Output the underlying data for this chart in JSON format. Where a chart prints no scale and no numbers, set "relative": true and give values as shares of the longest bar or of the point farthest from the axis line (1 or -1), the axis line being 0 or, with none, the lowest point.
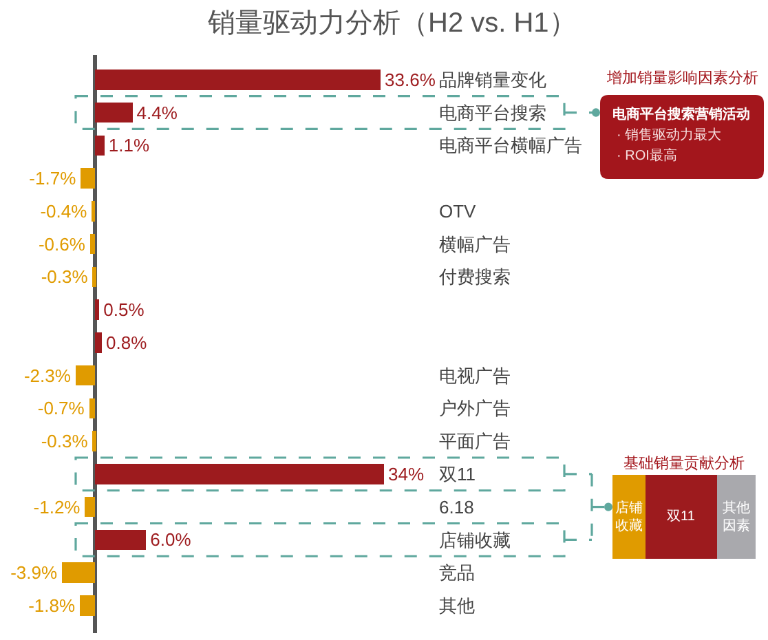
{
  "chart_data": [
    {
      "type": "bar",
      "title": "销量驱动力分析（H2 vs. H1）",
      "orientation": "horizontal",
      "tick_labels": "y",
      "categories": [
        "品牌销量变化",
        "电商平台搜索",
        "电商平台横幅广告",
        null,
        "OTV",
        "横幅广告",
        "付费搜索",
        null,
        null,
        "电视广告",
        "户外广告",
        "平面广告",
        "双11",
        "6.18",
        "店铺收藏",
        "竞品",
        "其他"
      ],
      "values": [
        33.6,
        4.4,
        1.1,
        -1.7,
        -0.4,
        -0.6,
        -0.3,
        0.5,
        0.8,
        -2.3,
        -0.7,
        -0.3,
        34,
        -1.2,
        6.0,
        -3.9,
        -1.8
      ],
      "value_labels": [
        "33.6%",
        "4.4%",
        "1.1%",
        "-1.7%",
        "-0.4%",
        "-0.6%",
        "-0.3%",
        "0.5%",
        "0.8%",
        "-2.3%",
        "-0.7%",
        "-0.3%",
        "34%",
        "-1.2%",
        "6.0%",
        "-3.9%",
        "-1.8%"
      ],
      "colors": [
        "#9d1b1e",
        "#9d1b1e",
        "#9d1b1e",
        "#e09b00",
        "#e09b00",
        "#e09b00",
        "#e09b00",
        "#9d1b1e",
        "#9d1b1e",
        "#e09b00",
        "#e09b00",
        "#e09b00",
        "#9d1b1e",
        "#e09b00",
        "#9d1b1e",
        "#e09b00",
        "#e09b00"
      ]
    },
    {
      "type": "other",
      "title": "增加销量影响因素分析",
      "annotations": [
        "电商平台搜索营销活动",
        "· 销售驱动力最大",
        "· ROI最高"
      ]
    },
    {
      "type": "bar",
      "title": "基础销量贡献分析",
      "orientation": "horizontal",
      "stacked": true,
      "relative": true,
      "tick_labels": false,
      "categories": [
        null
      ],
      "series": [
        {
          "name": "店铺收藏",
          "color": "#e09b00",
          "values": [
            0.23
          ]
        },
        {
          "name": "双11",
          "color": "#9d1b1e",
          "values": [
            0.5
          ]
        },
        {
          "name": "其他因素",
          "color": "#a9a9ad",
          "values": [
            0.27
          ]
        }
      ]
    }
  ]
}
